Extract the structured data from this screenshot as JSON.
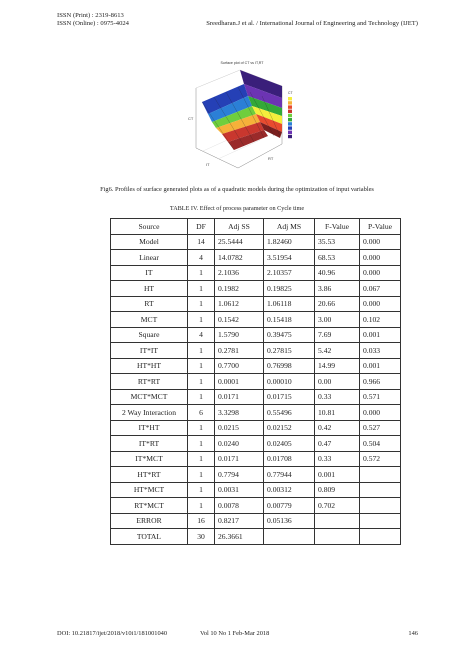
{
  "header": {
    "issn_print": "ISSN (Print)    : 2319-8613",
    "issn_online": "ISSN (Online) : 0975-4024",
    "journal": "Sreedharan.J et al. / International Journal of Engineering and Technology (IJET)"
  },
  "figure": {
    "caption": "Fig6. Profiles of surface generated plots as of a quadratic models during the optimization of input variables",
    "plot_title": "Surface plot of CT vs IT,RT",
    "axis_x": "IT",
    "axis_y": "RT",
    "axis_z": "CT",
    "legend_title": "CT",
    "legend_colors": [
      "#f4ee3c",
      "#f6b13a",
      "#e84b2f",
      "#c9372e",
      "#6fce3d",
      "#34a838",
      "#2b7fd6",
      "#2540b6",
      "#6c34b3",
      "#3a1f7a"
    ]
  },
  "table": {
    "caption": "TABLE IV.    Effect of process parameter on Cycle time",
    "headers": [
      "Source",
      "DF",
      "Adj SS",
      "Adj MS",
      "F-Value",
      "P-Value"
    ],
    "rows": [
      [
        "Model",
        "14",
        "25.5444",
        "1.82460",
        "35.53",
        "0.000"
      ],
      [
        "Linear",
        "4",
        "14.0782",
        "3.51954",
        "68.53",
        "0.000"
      ],
      [
        "IT",
        "1",
        "2.1036",
        "2.10357",
        "40.96",
        "0.000"
      ],
      [
        "HT",
        "1",
        "0.1982",
        "0.19825",
        "3.86",
        "0.067"
      ],
      [
        "RT",
        "1",
        "1.0612",
        "1.06118",
        "20.66",
        "0.000"
      ],
      [
        "MCT",
        "1",
        "0.1542",
        "0.15418",
        "3.00",
        "0.102"
      ],
      [
        "Square",
        "4",
        "1.5790",
        "0.39475",
        "7.69",
        "0.001"
      ],
      [
        "IT*IT",
        "1",
        "0.2781",
        "0.27815",
        "5.42",
        "0.033"
      ],
      [
        "HT*HT",
        "1",
        "0.7700",
        "0.76998",
        "14.99",
        "0.001"
      ],
      [
        "RT*RT",
        "1",
        "0.0001",
        "0.00010",
        "0.00",
        "0.966"
      ],
      [
        "MCT*MCT",
        "1",
        "0.0171",
        "0.01715",
        "0.33",
        "0.571"
      ],
      [
        "2 Way Interaction",
        "6",
        "3.3298",
        "0.55496",
        "10.81",
        "0.000"
      ],
      [
        "IT*HT",
        "1",
        "0.0215",
        "0.02152",
        "0.42",
        "0.527"
      ],
      [
        "IT*RT",
        "1",
        "0.0240",
        "0.02405",
        "0.47",
        "0.504"
      ],
      [
        "IT*MCT",
        "1",
        "0.0171",
        "0.01708",
        "0.33",
        "0.572"
      ],
      [
        "HT*RT",
        "1",
        "0.7794",
        "0.77944",
        "0.001",
        ""
      ],
      [
        "HT*MCT",
        "1",
        "0.0031",
        "0.00312",
        "0.809",
        ""
      ],
      [
        "RT*MCT",
        "1",
        "0.0078",
        "0.00779",
        "0.702",
        ""
      ],
      [
        "ERROR",
        "16",
        "0.8217",
        "0.05136",
        "",
        ""
      ],
      [
        "TOTAL",
        "30",
        "26.3661",
        "",
        "",
        ""
      ]
    ]
  },
  "footer": {
    "doi": "DOI: 10.21817/ijet/2018/v10i1/181001040",
    "volume": "Vol 10 No 1 Feb-Mar 2018",
    "page": "146"
  }
}
